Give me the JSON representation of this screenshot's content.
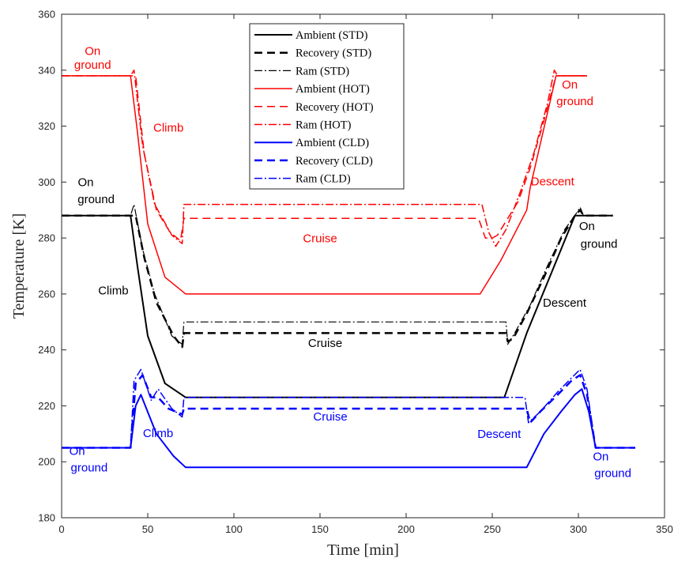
{
  "chart_data": {
    "type": "line",
    "title": "",
    "xlabel": "Time [min]",
    "ylabel": "Temperature [K]",
    "xlim": [
      0,
      350
    ],
    "ylim": [
      180,
      360
    ],
    "xticks": [
      0,
      50,
      100,
      150,
      200,
      250,
      300,
      350
    ],
    "yticks": [
      180,
      200,
      220,
      240,
      260,
      280,
      300,
      320,
      340,
      360
    ],
    "grid": false,
    "legend_position": "top-center",
    "series": [
      {
        "name": "Ambient (STD)",
        "color": "#000000",
        "style": "solid",
        "width": 2,
        "x": [
          0,
          40,
          44,
          50,
          60,
          72,
          257,
          270,
          298,
          320
        ],
        "y": [
          288,
          288,
          270,
          245,
          228,
          223,
          223,
          246,
          288,
          288
        ]
      },
      {
        "name": "Recovery (STD)",
        "color": "#000000",
        "style": "dashed",
        "width": 2.5,
        "x": [
          0,
          40,
          43,
          48,
          55,
          65,
          70,
          71,
          258,
          259,
          262,
          270,
          280,
          290,
          298,
          301,
          303,
          320
        ],
        "y": [
          288,
          288,
          288,
          273,
          257,
          245,
          241,
          246,
          246,
          243,
          244,
          253,
          266,
          280,
          288,
          290,
          288,
          288
        ]
      },
      {
        "name": "Ram (STD)",
        "color": "#000000",
        "style": "dashdot",
        "width": 1.2,
        "x": [
          0,
          40,
          42,
          47,
          54,
          64,
          70,
          71,
          258,
          259,
          263,
          272,
          282,
          292,
          299,
          301,
          303,
          320
        ],
        "y": [
          288,
          288,
          292,
          276,
          260,
          245,
          242,
          250,
          250,
          242,
          246,
          256,
          270,
          283,
          289,
          291,
          288,
          288
        ]
      },
      {
        "name": "Ambient (HOT)",
        "color": "#ff0000",
        "style": "solid",
        "width": 1.5,
        "x": [
          0,
          40,
          44,
          50,
          60,
          72,
          243,
          255,
          270,
          272,
          287,
          305
        ],
        "y": [
          338,
          338,
          318,
          285,
          266,
          260,
          260,
          272,
          290,
          298,
          338,
          338
        ]
      },
      {
        "name": "Recovery (HOT)",
        "color": "#ff0000",
        "style": "dashed",
        "width": 1.5,
        "x": [
          0,
          40,
          43,
          48,
          55,
          63,
          69,
          71,
          242,
          246,
          250,
          253,
          258,
          265,
          272,
          280,
          287,
          305
        ],
        "y": [
          338,
          338,
          338,
          310,
          290,
          282,
          279,
          287,
          287,
          280,
          280,
          281,
          286,
          293,
          305,
          322,
          338,
          338
        ]
      },
      {
        "name": "Ram (HOT)",
        "color": "#ff0000",
        "style": "dashdot",
        "width": 1.5,
        "x": [
          0,
          40,
          42,
          47,
          54,
          64,
          70,
          71,
          244,
          248,
          252,
          258,
          266,
          274,
          282,
          286,
          288,
          305
        ],
        "y": [
          338,
          338,
          340,
          313,
          292,
          281,
          278,
          292,
          292,
          282,
          277,
          283,
          296,
          310,
          328,
          340,
          338,
          338
        ]
      },
      {
        "name": "Ambient (CLD)",
        "color": "#0000ff",
        "style": "solid",
        "width": 2,
        "x": [
          0,
          40,
          43,
          46,
          55,
          65,
          72,
          270,
          280,
          290,
          298,
          302,
          306,
          310,
          333
        ],
        "y": [
          205,
          205,
          220,
          224,
          210,
          202,
          198,
          198,
          210,
          218,
          224,
          226,
          218,
          205,
          205
        ]
      },
      {
        "name": "Recovery (CLD)",
        "color": "#0000ff",
        "style": "dashed",
        "width": 2.5,
        "x": [
          0,
          40,
          43,
          47,
          52,
          56,
          62,
          70,
          71,
          270,
          272,
          278,
          288,
          296,
          301,
          305,
          310,
          333
        ],
        "y": [
          205,
          205,
          228,
          231,
          223,
          223,
          219,
          217,
          219,
          219,
          214,
          218,
          224,
          229,
          231,
          224,
          205,
          205
        ]
      },
      {
        "name": "Ram (CLD)",
        "color": "#0000ff",
        "style": "dashdot",
        "width": 1.5,
        "x": [
          0,
          40,
          42,
          46,
          52,
          56,
          64,
          70,
          71,
          269,
          271,
          278,
          288,
          296,
          301,
          305,
          310,
          333
        ],
        "y": [
          205,
          205,
          229,
          233,
          222,
          226,
          219,
          216,
          223,
          223,
          214,
          218,
          225,
          230,
          233,
          226,
          205,
          205
        ]
      }
    ],
    "annotations": [
      {
        "text": "On",
        "x": 18,
        "y": 345.5,
        "color": "#ff0000"
      },
      {
        "text": "ground",
        "x": 18,
        "y": 340.5,
        "color": "#ff0000"
      },
      {
        "text": "Climb",
        "x": 62,
        "y": 318,
        "color": "#ff0000"
      },
      {
        "text": "Cruise",
        "x": 150,
        "y": 278.5,
        "color": "#ff0000"
      },
      {
        "text": "Descent",
        "x": 285,
        "y": 298.8,
        "color": "#ff0000"
      },
      {
        "text": "On",
        "x": 295,
        "y": 333.5,
        "color": "#ff0000"
      },
      {
        "text": "ground",
        "x": 298,
        "y": 327.5,
        "color": "#ff0000"
      },
      {
        "text": "On",
        "x": 14,
        "y": 298.5,
        "color": "#000000"
      },
      {
        "text": "ground",
        "x": 20,
        "y": 292.5,
        "color": "#000000"
      },
      {
        "text": "Climb",
        "x": 30,
        "y": 259.8,
        "color": "#000000"
      },
      {
        "text": "Cruise",
        "x": 153,
        "y": 241,
        "color": "#000000"
      },
      {
        "text": "Descent",
        "x": 292,
        "y": 255.5,
        "color": "#000000"
      },
      {
        "text": "On",
        "x": 305,
        "y": 282.8,
        "color": "#000000"
      },
      {
        "text": "ground",
        "x": 312,
        "y": 276.5,
        "color": "#000000"
      },
      {
        "text": "Climb",
        "x": 56,
        "y": 208.8,
        "color": "#0000ff"
      },
      {
        "text": "Cruise",
        "x": 156,
        "y": 214.8,
        "color": "#0000ff"
      },
      {
        "text": "Descent",
        "x": 254,
        "y": 208.5,
        "color": "#0000ff"
      },
      {
        "text": "On",
        "x": 9,
        "y": 202.5,
        "color": "#0000ff"
      },
      {
        "text": "ground",
        "x": 16,
        "y": 196.5,
        "color": "#0000ff"
      },
      {
        "text": "On",
        "x": 313,
        "y": 200.5,
        "color": "#0000ff"
      },
      {
        "text": "ground",
        "x": 320,
        "y": 194.5,
        "color": "#0000ff"
      }
    ]
  }
}
